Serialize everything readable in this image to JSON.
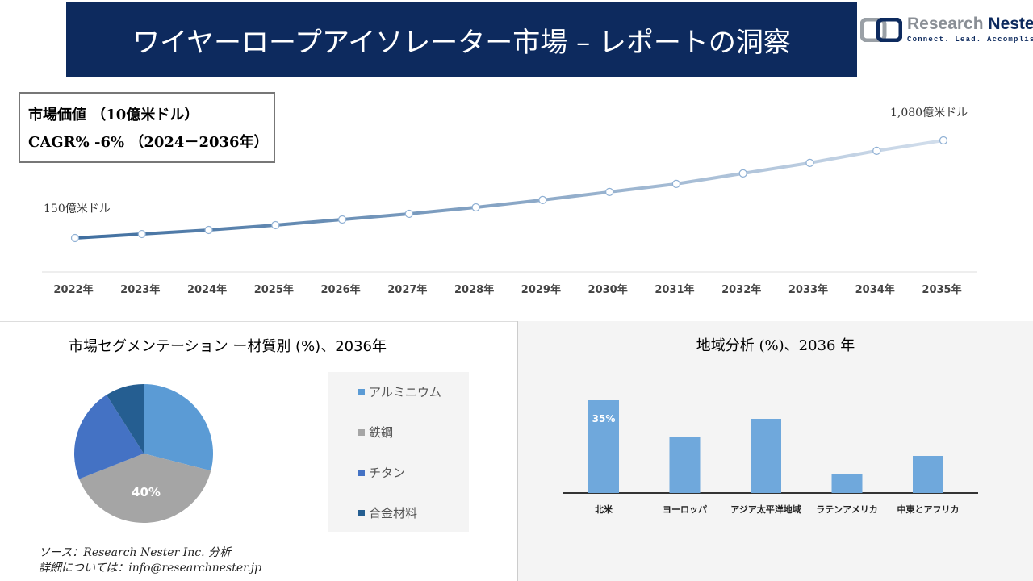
{
  "header": {
    "title": "ワイヤーロープアイソレーター市場 – レポートの洞察"
  },
  "logo": {
    "name_a": "Research",
    "name_b": "Nester",
    "tagline": "Connect. Lead. Accomplish"
  },
  "info": {
    "line1": "市場価値 （10億米ドル）",
    "line2": "CAGR% -6% （2024－2036年）"
  },
  "chart_data": [
    {
      "type": "line",
      "x": [
        "2022年",
        "2023年",
        "2024年",
        "2025年",
        "2026年",
        "2027年",
        "2028年",
        "2029年",
        "2030年",
        "2031年",
        "2032年",
        "2033年",
        "2034年",
        "2035年"
      ],
      "values": [
        150,
        188,
        227,
        273,
        327,
        381,
        442,
        512,
        589,
        666,
        766,
        866,
        981,
        1080
      ],
      "annotations": {
        "start": "150億米ドル",
        "end": "1,080億米ドル"
      },
      "color_start": "#3f6e9f",
      "color_end": "#d2deec",
      "grid": false
    },
    {
      "type": "pie",
      "title": "市場セグメンテーション ー材質別 (%)、2036年",
      "categories": [
        "アルミニウム",
        "鉄鋼",
        "チタン",
        "合金材料"
      ],
      "values": [
        29,
        40,
        22,
        9
      ],
      "colors": [
        "#5b9bd5",
        "#a5a5a5",
        "#4472c4",
        "#255e91"
      ],
      "data_labels": [
        "",
        "40%",
        "",
        ""
      ],
      "legend": "right"
    },
    {
      "type": "bar",
      "title": "地域分析 (%)、2036 年",
      "categories": [
        "北米",
        "ヨーロッパ",
        "アジア太平洋地域",
        "ラテンアメリカ",
        "中東とアフリカ"
      ],
      "values": [
        35,
        21,
        28,
        7,
        14
      ],
      "data_labels": [
        "35%",
        "",
        "",
        "",
        ""
      ],
      "color": "#6fa8dc"
    }
  ],
  "source": {
    "line1": "ソース：Research Nester Inc. 分析",
    "line2": "詳細については：info@researchnester.jp"
  }
}
